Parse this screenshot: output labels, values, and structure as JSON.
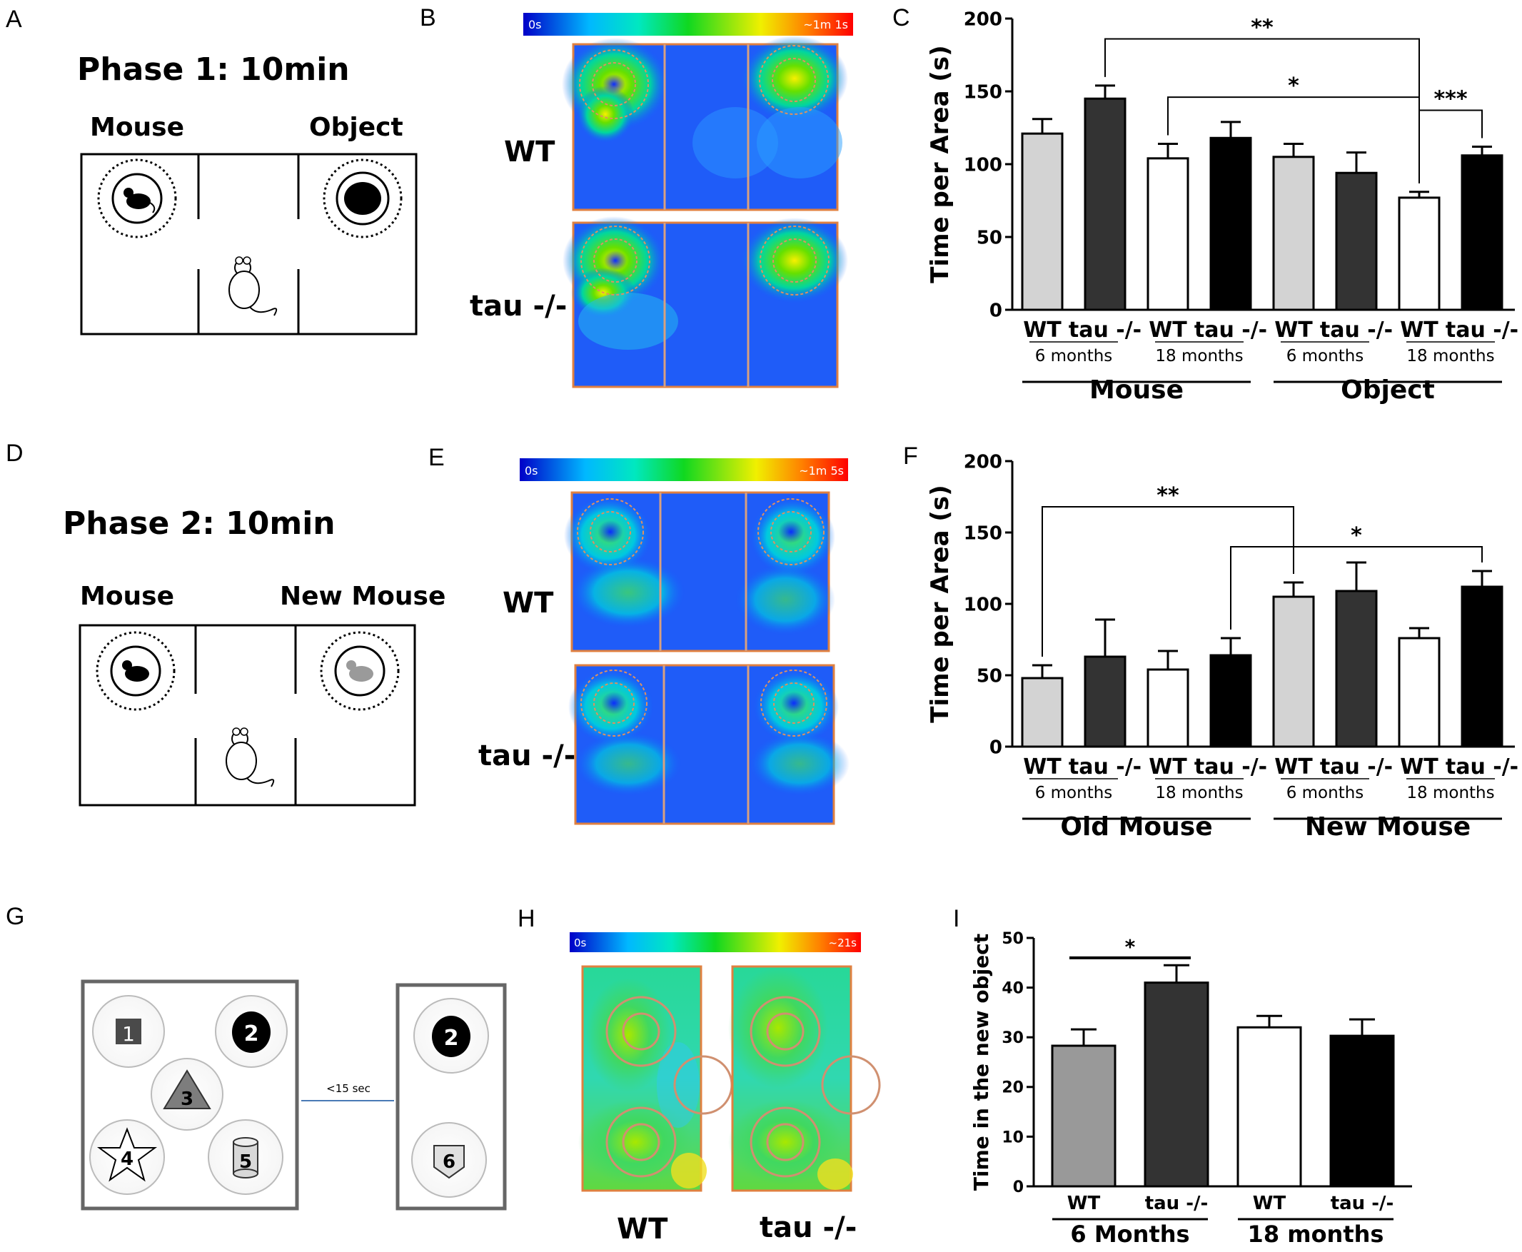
{
  "panels": {
    "a": "A",
    "b": "B",
    "c": "C",
    "d": "D",
    "e": "E",
    "f": "F",
    "g": "G",
    "h": "H",
    "i": "I"
  },
  "phase1": {
    "title": "Phase 1: 10min",
    "left_label": "Mouse",
    "right_label": "Object"
  },
  "phase2": {
    "title": "Phase 2: 10min",
    "left_label": "Mouse",
    "right_label": "New Mouse"
  },
  "heatmap_b": {
    "scale_min": "0s",
    "scale_max": "~1m 1s",
    "row1": "WT",
    "row2": "tau -/-"
  },
  "heatmap_e": {
    "scale_min": "0s",
    "scale_max": "~1m 5s",
    "row1": "WT",
    "row2": "tau -/-"
  },
  "heatmap_h": {
    "scale_min": "0s",
    "scale_max": "~21s",
    "col1": "WT",
    "col2": "tau -/-"
  },
  "panel_g": {
    "objects_left": [
      "1",
      "2",
      "3",
      "4",
      "5"
    ],
    "objects_right": [
      "2",
      "6"
    ],
    "interval": "<15 sec"
  },
  "colors": {
    "light_gray": "#d3d3d3",
    "dark_gray": "#333333",
    "mid_gray": "#999999",
    "white": "#ffffff",
    "black": "#000000"
  },
  "chart_data": [
    {
      "id": "C",
      "type": "bar",
      "ylabel": "Time per Area (s)",
      "ylim": [
        0,
        200
      ],
      "yticks": [
        "0",
        "50",
        "100",
        "150",
        "200"
      ],
      "categories": [
        "WT",
        "tau -/-",
        "WT",
        "tau -/-",
        "WT",
        "tau -/-",
        "WT",
        "tau -/-"
      ],
      "values": [
        121,
        145,
        104,
        118,
        105,
        94,
        77,
        106
      ],
      "errors": [
        10,
        9,
        10,
        11,
        9,
        14,
        4,
        6
      ],
      "fills": [
        "light_gray",
        "dark_gray",
        "white",
        "black",
        "light_gray",
        "dark_gray",
        "white",
        "black"
      ],
      "age_groups": [
        "6 months",
        "18 months",
        "6 months",
        "18 months"
      ],
      "groups": [
        "Mouse",
        "Object"
      ],
      "significance": [
        {
          "from": 1,
          "to": 6,
          "label": "**",
          "level": 186
        },
        {
          "from": 2,
          "to": 6,
          "label": "*",
          "level": 146
        },
        {
          "from": 6,
          "to": 7,
          "label": "***",
          "level": 137
        }
      ]
    },
    {
      "id": "F",
      "type": "bar",
      "ylabel": "Time per Area (s)",
      "ylim": [
        0,
        200
      ],
      "yticks": [
        "0",
        "50",
        "100",
        "150",
        "200"
      ],
      "categories": [
        "WT",
        "tau -/-",
        "WT",
        "tau -/-",
        "WT",
        "tau -/-",
        "WT",
        "tau -/-"
      ],
      "values": [
        48,
        63,
        54,
        64,
        105,
        109,
        76,
        112
      ],
      "errors": [
        9,
        26,
        13,
        12,
        10,
        20,
        7,
        11
      ],
      "fills": [
        "light_gray",
        "dark_gray",
        "white",
        "black",
        "light_gray",
        "dark_gray",
        "white",
        "black"
      ],
      "age_groups": [
        "6 months",
        "18 months",
        "6 months",
        "18 months"
      ],
      "groups": [
        "Old Mouse",
        "New Mouse"
      ],
      "significance": [
        {
          "from": 0,
          "to": 4,
          "label": "**",
          "level": 168
        },
        {
          "from": 3,
          "to": 7,
          "label": "*",
          "level": 140
        }
      ]
    },
    {
      "id": "I",
      "type": "bar",
      "ylabel": "Time in the new object",
      "ylim": [
        0,
        50
      ],
      "yticks": [
        "0",
        "10",
        "20",
        "30",
        "40",
        "50"
      ],
      "categories": [
        "WT",
        "tau -/-",
        "WT",
        "tau -/-"
      ],
      "values": [
        28.3,
        41,
        32,
        30.3
      ],
      "errors": [
        3.3,
        3.5,
        2.3,
        3.3
      ],
      "fills": [
        "mid_gray",
        "dark_gray",
        "white",
        "black"
      ],
      "groups": [
        "6 Months",
        "18 months"
      ],
      "significance": [
        {
          "from": 0,
          "to": 1,
          "label": "*",
          "level": 46
        }
      ]
    }
  ]
}
